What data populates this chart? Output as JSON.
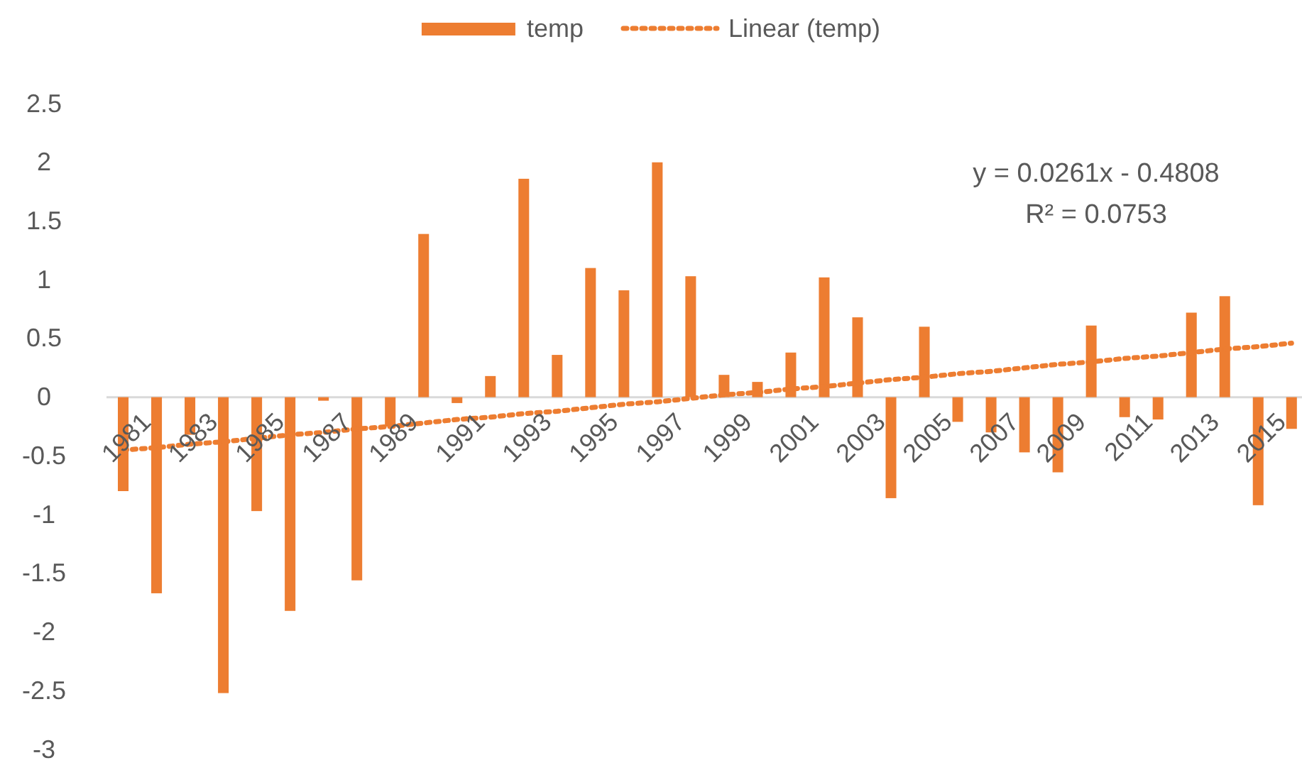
{
  "chart_data": {
    "type": "bar",
    "categories": [
      "1981",
      null,
      "1983",
      null,
      "1985",
      null,
      "1987",
      null,
      "1989",
      null,
      "1991",
      null,
      "1993",
      null,
      "1995",
      null,
      "1997",
      null,
      "1999",
      null,
      "2001",
      null,
      "2003",
      null,
      "2005",
      null,
      "2007",
      null,
      "2009",
      null,
      "2011",
      null,
      "2013",
      null,
      "2015",
      null
    ],
    "series": [
      {
        "name": "temp",
        "color": "#ed7d31",
        "values": [
          -0.8,
          -1.67,
          -0.32,
          -2.52,
          -0.97,
          -1.82,
          -0.03,
          -1.56,
          -0.25,
          1.39,
          -0.05,
          0.18,
          1.86,
          0.36,
          1.1,
          0.91,
          2.0,
          1.03,
          0.19,
          0.13,
          0.38,
          1.02,
          0.68,
          -0.86,
          0.6,
          -0.21,
          -0.3,
          -0.47,
          -0.64,
          0.61,
          -0.17,
          -0.19,
          0.72,
          0.86,
          -0.92,
          -0.27
        ]
      },
      {
        "name": "Linear (temp)",
        "type": "line",
        "color": "#ed7d31",
        "line_style": "dotted",
        "values": [
          -0.45,
          -0.43,
          -0.4,
          -0.38,
          -0.35,
          -0.32,
          -0.3,
          -0.27,
          -0.25,
          -0.22,
          -0.19,
          -0.17,
          -0.14,
          -0.12,
          -0.09,
          -0.06,
          -0.04,
          -0.01,
          0.02,
          0.04,
          0.07,
          0.09,
          0.12,
          0.15,
          0.17,
          0.2,
          0.22,
          0.25,
          0.28,
          0.3,
          0.33,
          0.35,
          0.38,
          0.41,
          0.43,
          0.46
        ]
      }
    ],
    "ylim": [
      -3,
      2.5
    ],
    "yticks": [
      -3,
      -2.5,
      -2,
      -1.5,
      -1,
      -0.5,
      0,
      0.5,
      1,
      1.5,
      2,
      2.5
    ],
    "grid": false,
    "legend": "top",
    "annotations": [
      "y = 0.0261x - 0.4808",
      "R² = 0.0753"
    ]
  }
}
